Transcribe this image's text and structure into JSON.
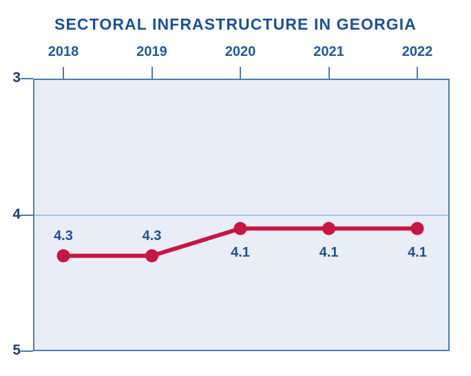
{
  "chart_data": {
    "type": "line",
    "title": "SECTORAL INFRASTRUCTURE IN GEORGIA",
    "categories": [
      "2018",
      "2019",
      "2020",
      "2021",
      "2022"
    ],
    "series": [
      {
        "name": "sectoral-infrastructure",
        "values": [
          4.3,
          4.3,
          4.1,
          4.1,
          4.1
        ]
      }
    ],
    "point_labels": [
      "4.3",
      "4.3",
      "4.1",
      "4.1",
      "4.1"
    ],
    "point_label_positions": [
      "above",
      "above",
      "below",
      "below",
      "below"
    ],
    "x_axis": {
      "position": "top",
      "tick_labels": [
        "2018",
        "2019",
        "2020",
        "2021",
        "2022"
      ]
    },
    "y_axis": {
      "tick_labels": [
        "3",
        "4",
        "5"
      ],
      "tick_values": [
        3,
        4,
        5
      ],
      "min": 3,
      "max": 5,
      "inverted": true
    },
    "gridlines_at": [
      4
    ],
    "legend": "none",
    "colors": {
      "line": "#c81543",
      "marker": "#c81543",
      "title_text": "#1b4f9c",
      "year_text": "#1e5aa0",
      "axis_number_text": "#1c3e78",
      "value_text": "#1e4f97",
      "plot_fill": "#e9eef6",
      "plot_border": "#4b7ab2",
      "gridline": "#a9c4de",
      "background": "#ffffff"
    }
  }
}
